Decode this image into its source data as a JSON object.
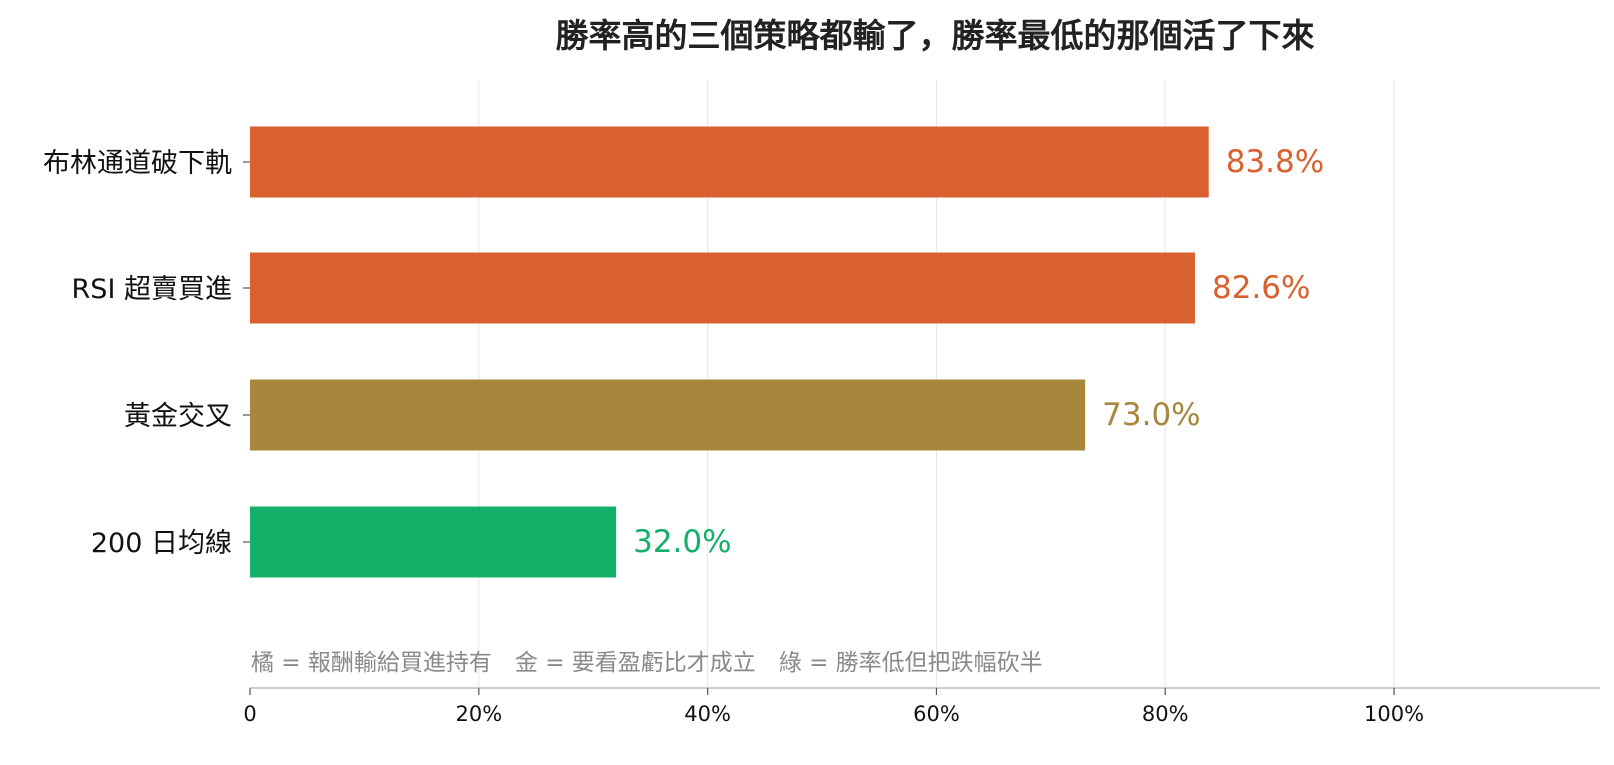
{
  "chart_data": {
    "type": "bar",
    "orientation": "horizontal",
    "title": "勝率高的三個策略都輸了，勝率最低的那個活了下來",
    "categories": [
      "布林通道破下軌",
      "RSI 超賣買進",
      "黃金交叉",
      "200 日均線"
    ],
    "values": [
      83.8,
      82.6,
      73.0,
      32.0
    ],
    "value_labels": [
      "83.8%",
      "82.6%",
      "73.0%",
      "32.0%"
    ],
    "bar_colors": [
      "#d9602f",
      "#d9602f",
      "#a8873c",
      "#14b06a"
    ],
    "xlim": [
      0,
      118
    ],
    "x_ticks": [
      0,
      20,
      40,
      60,
      80,
      100
    ],
    "x_tick_labels": [
      "0",
      "20%",
      "40%",
      "60%",
      "80%",
      "100%"
    ],
    "xlabel": "",
    "ylabel": "",
    "grid": "vertical",
    "legend": "none",
    "note": "橘 = 報酬輸給買進持有　金 = 要看盈虧比才成立　綠 = 勝率低但把跌幅砍半"
  }
}
